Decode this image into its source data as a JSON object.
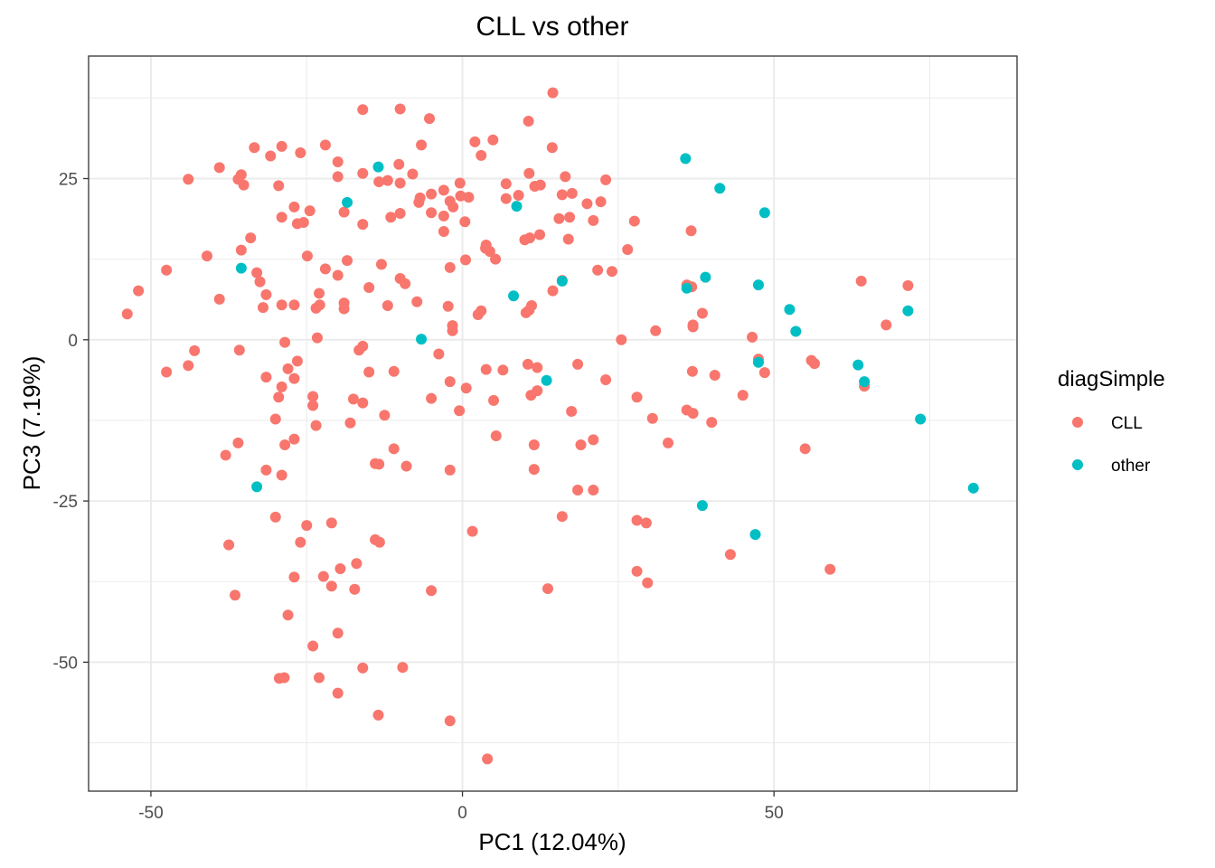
{
  "chart_data": {
    "type": "scatter",
    "title": "CLL vs other",
    "xlabel": "PC1 (12.04%)",
    "ylabel": "PC3 (7.19%)",
    "xlim": [
      -60,
      89
    ],
    "ylim": [
      -70,
      44
    ],
    "xticks": [
      -50,
      0,
      50
    ],
    "yticks": [
      -50,
      -25,
      0,
      25
    ],
    "grid": true,
    "legend": {
      "title": "diagSimple",
      "position": "right"
    },
    "series": [
      {
        "name": "CLL",
        "color": "#F8766D",
        "points": [
          [
            14.5,
            38.3
          ],
          [
            -16,
            35.7
          ],
          [
            -10,
            35.8
          ],
          [
            -5.3,
            34.3
          ],
          [
            10.6,
            33.9
          ],
          [
            -33.4,
            29.8
          ],
          [
            -29,
            30
          ],
          [
            -26,
            29
          ],
          [
            -22,
            30.2
          ],
          [
            -6.6,
            30.2
          ],
          [
            2,
            30.7
          ],
          [
            4.9,
            31
          ],
          [
            14.4,
            29.8
          ],
          [
            -30.8,
            28.5
          ],
          [
            3,
            28.6
          ],
          [
            -20,
            27.6
          ],
          [
            -10.2,
            27.2
          ],
          [
            -39,
            26.7
          ],
          [
            -35.5,
            25.6
          ],
          [
            -44,
            24.9
          ],
          [
            -36,
            24.9
          ],
          [
            -35.1,
            24
          ],
          [
            -29.5,
            23.9
          ],
          [
            -20,
            25.3
          ],
          [
            -16,
            25.8
          ],
          [
            -13.4,
            24.5
          ],
          [
            -12,
            24.7
          ],
          [
            -10,
            24.3
          ],
          [
            -8,
            25.7
          ],
          [
            -5,
            22.6
          ],
          [
            -3,
            23.2
          ],
          [
            -0.4,
            24.3
          ],
          [
            7,
            24.2
          ],
          [
            10.7,
            25.8
          ],
          [
            16.5,
            25.3
          ],
          [
            23,
            24.8
          ],
          [
            16,
            22.5
          ],
          [
            11.6,
            23.8
          ],
          [
            12.5,
            24
          ],
          [
            17.6,
            22.7
          ],
          [
            -27,
            20.6
          ],
          [
            -24.5,
            20
          ],
          [
            -19,
            19.8
          ],
          [
            -11.5,
            19
          ],
          [
            -10,
            19.6
          ],
          [
            -7,
            21.3
          ],
          [
            -6.8,
            22
          ],
          [
            -5,
            19.7
          ],
          [
            -3,
            19.2
          ],
          [
            -0.3,
            22.3
          ],
          [
            -2,
            21.5
          ],
          [
            -1.5,
            20.6
          ],
          [
            1,
            22.1
          ],
          [
            7,
            21.9
          ],
          [
            9,
            22.4
          ],
          [
            15.5,
            18.8
          ],
          [
            17.2,
            19
          ],
          [
            20,
            21.1
          ],
          [
            22.2,
            21.4
          ],
          [
            21,
            18.5
          ],
          [
            -29,
            19
          ],
          [
            -26.5,
            18
          ],
          [
            -25.5,
            18.2
          ],
          [
            -16,
            17.9
          ],
          [
            -3,
            16.8
          ],
          [
            0.4,
            18.3
          ],
          [
            10,
            15.5
          ],
          [
            10.8,
            15.8
          ],
          [
            12.4,
            16.3
          ],
          [
            17,
            15.6
          ],
          [
            27.6,
            18.4
          ],
          [
            36.7,
            16.9
          ],
          [
            -34,
            15.8
          ],
          [
            -35.5,
            13.9
          ],
          [
            -41,
            13
          ],
          [
            -24.9,
            13
          ],
          [
            -22,
            11
          ],
          [
            -18.5,
            12.3
          ],
          [
            -13,
            11.7
          ],
          [
            -2,
            11.2
          ],
          [
            0.5,
            12.4
          ],
          [
            3.7,
            14.2
          ],
          [
            3.8,
            14.7
          ],
          [
            5.3,
            12.5
          ],
          [
            4.4,
            13.7
          ],
          [
            21.7,
            10.8
          ],
          [
            24,
            10.6
          ],
          [
            26.5,
            14
          ],
          [
            -47.5,
            10.8
          ],
          [
            -33,
            10.4
          ],
          [
            -32.5,
            9
          ],
          [
            -32,
            5
          ],
          [
            -31.5,
            7
          ],
          [
            -29,
            5.4
          ],
          [
            -27,
            5.4
          ],
          [
            -23,
            7.2
          ],
          [
            -23.5,
            4.9
          ],
          [
            -22.9,
            5.4
          ],
          [
            -20,
            10
          ],
          [
            -19,
            4.8
          ],
          [
            -19,
            5.7
          ],
          [
            -15,
            8.1
          ],
          [
            -12,
            5.3
          ],
          [
            -10,
            9.5
          ],
          [
            -9.2,
            8.7
          ],
          [
            -7.3,
            5.9
          ],
          [
            -2.3,
            5.2
          ],
          [
            2.5,
            3.9
          ],
          [
            3,
            4.5
          ],
          [
            10.2,
            4.2
          ],
          [
            10.7,
            4.6
          ],
          [
            11.1,
            5.3
          ],
          [
            14.5,
            7.6
          ],
          [
            16,
            9.2
          ],
          [
            -53.8,
            4
          ],
          [
            -52,
            7.6
          ],
          [
            -39,
            6.3
          ],
          [
            -35.8,
            -1.6
          ],
          [
            -43,
            -1.7
          ],
          [
            -44,
            -4
          ],
          [
            -47.5,
            -5
          ],
          [
            -28.5,
            -0.4
          ],
          [
            -28,
            -4.5
          ],
          [
            -26.5,
            -3.3
          ],
          [
            -23.3,
            0.3
          ],
          [
            -16.6,
            -1.6
          ],
          [
            -16,
            -1
          ],
          [
            -15,
            -5
          ],
          [
            -11,
            -4.9
          ],
          [
            -1.6,
            2.2
          ],
          [
            -1.6,
            1.4
          ],
          [
            -3.8,
            -2.2
          ],
          [
            3.8,
            -4.6
          ],
          [
            6.5,
            -4.7
          ],
          [
            10.5,
            -3.8
          ],
          [
            12,
            -4.3
          ],
          [
            18.5,
            -3.8
          ],
          [
            25.5,
            0
          ],
          [
            31,
            1.4
          ],
          [
            36,
            8.5
          ],
          [
            36.8,
            8.2
          ],
          [
            37,
            2
          ],
          [
            37,
            2.3
          ],
          [
            38.5,
            4.1
          ],
          [
            46.5,
            0.4
          ],
          [
            36.9,
            -4.9
          ],
          [
            40.5,
            -5.5
          ],
          [
            47.5,
            -3
          ],
          [
            48.5,
            -5.1
          ],
          [
            56,
            -3.2
          ],
          [
            56.5,
            -3.7
          ],
          [
            64,
            9.1
          ],
          [
            71.5,
            8.4
          ],
          [
            68,
            2.3
          ],
          [
            64.5,
            -7.2
          ],
          [
            -31.5,
            -5.8
          ],
          [
            -29,
            -7.3
          ],
          [
            -27,
            -6
          ],
          [
            -29.5,
            -8.9
          ],
          [
            -24,
            -8.8
          ],
          [
            -24,
            -10.2
          ],
          [
            -30,
            -12.3
          ],
          [
            -23.5,
            -13.3
          ],
          [
            -18,
            -12.9
          ],
          [
            -17.5,
            -9.2
          ],
          [
            -16,
            -9.8
          ],
          [
            -12.5,
            -11.7
          ],
          [
            -5,
            -9.1
          ],
          [
            -2,
            -6.5
          ],
          [
            -0.5,
            -11
          ],
          [
            0.6,
            -7.5
          ],
          [
            5,
            -9.4
          ],
          [
            11,
            -8.6
          ],
          [
            12,
            -7.9
          ],
          [
            17.5,
            -11.1
          ],
          [
            23,
            -6.2
          ],
          [
            28,
            -8.9
          ],
          [
            30.5,
            -12.2
          ],
          [
            36,
            -10.9
          ],
          [
            37,
            -11.4
          ],
          [
            40,
            -12.8
          ],
          [
            45,
            -8.6
          ],
          [
            -36,
            -16
          ],
          [
            -28.5,
            -16.3
          ],
          [
            -27,
            -15.4
          ],
          [
            -38,
            -17.9
          ],
          [
            -31.5,
            -20.2
          ],
          [
            -29,
            -21
          ],
          [
            -14,
            -19.2
          ],
          [
            -13.4,
            -19.3
          ],
          [
            -11,
            -16.9
          ],
          [
            -9,
            -19.6
          ],
          [
            -2,
            -20.2
          ],
          [
            5.4,
            -14.9
          ],
          [
            11.5,
            -16.3
          ],
          [
            11.5,
            -20.1
          ],
          [
            19,
            -16.3
          ],
          [
            21,
            -15.5
          ],
          [
            33,
            -16
          ],
          [
            55,
            -16.9
          ],
          [
            -30,
            -27.5
          ],
          [
            -25,
            -28.8
          ],
          [
            -21,
            -28.4
          ],
          [
            -26,
            -31.4
          ],
          [
            -14,
            -31
          ],
          [
            -13.3,
            -31.4
          ],
          [
            -37.5,
            -31.8
          ],
          [
            1.6,
            -29.7
          ],
          [
            18.5,
            -23.3
          ],
          [
            21,
            -23.3
          ],
          [
            16,
            -27.4
          ],
          [
            28,
            -28
          ],
          [
            29.5,
            -28.4
          ],
          [
            43,
            -33.3
          ],
          [
            -36.5,
            -39.6
          ],
          [
            -27,
            -36.8
          ],
          [
            -22.3,
            -36.7
          ],
          [
            -21,
            -38.2
          ],
          [
            -19.6,
            -35.5
          ],
          [
            -17.3,
            -38.7
          ],
          [
            -17,
            -34.7
          ],
          [
            -5,
            -38.9
          ],
          [
            13.7,
            -38.6
          ],
          [
            28,
            -35.9
          ],
          [
            29.7,
            -37.7
          ],
          [
            59,
            -35.6
          ],
          [
            -28,
            -42.7
          ],
          [
            -24,
            -47.5
          ],
          [
            -20,
            -45.5
          ],
          [
            -29.4,
            -52.5
          ],
          [
            -28.6,
            -52.4
          ],
          [
            -23,
            -52.4
          ],
          [
            -16,
            -50.9
          ],
          [
            -9.6,
            -50.8
          ],
          [
            -20,
            -54.8
          ],
          [
            -13.5,
            -58.2
          ],
          [
            -2,
            -59.1
          ],
          [
            4,
            -65
          ]
        ]
      },
      {
        "name": "other",
        "color": "#00BFC4",
        "points": [
          [
            35.8,
            28.1
          ],
          [
            -13.5,
            26.8
          ],
          [
            41.3,
            23.5
          ],
          [
            -18.5,
            21.3
          ],
          [
            48.5,
            19.7
          ],
          [
            8.7,
            20.7
          ],
          [
            -35.5,
            11.1
          ],
          [
            39,
            9.7
          ],
          [
            16,
            9.1
          ],
          [
            47.5,
            8.5
          ],
          [
            36,
            8
          ],
          [
            8.2,
            6.8
          ],
          [
            52.5,
            4.7
          ],
          [
            71.5,
            4.5
          ],
          [
            53.5,
            1.3
          ],
          [
            -6.6,
            0.1
          ],
          [
            47.5,
            -3.5
          ],
          [
            63.5,
            -3.9
          ],
          [
            64.5,
            -6.5
          ],
          [
            13.5,
            -6.3
          ],
          [
            73.5,
            -12.3
          ],
          [
            -33,
            -22.8
          ],
          [
            82,
            -23
          ],
          [
            38.5,
            -25.7
          ],
          [
            47,
            -30.2
          ]
        ]
      }
    ]
  }
}
